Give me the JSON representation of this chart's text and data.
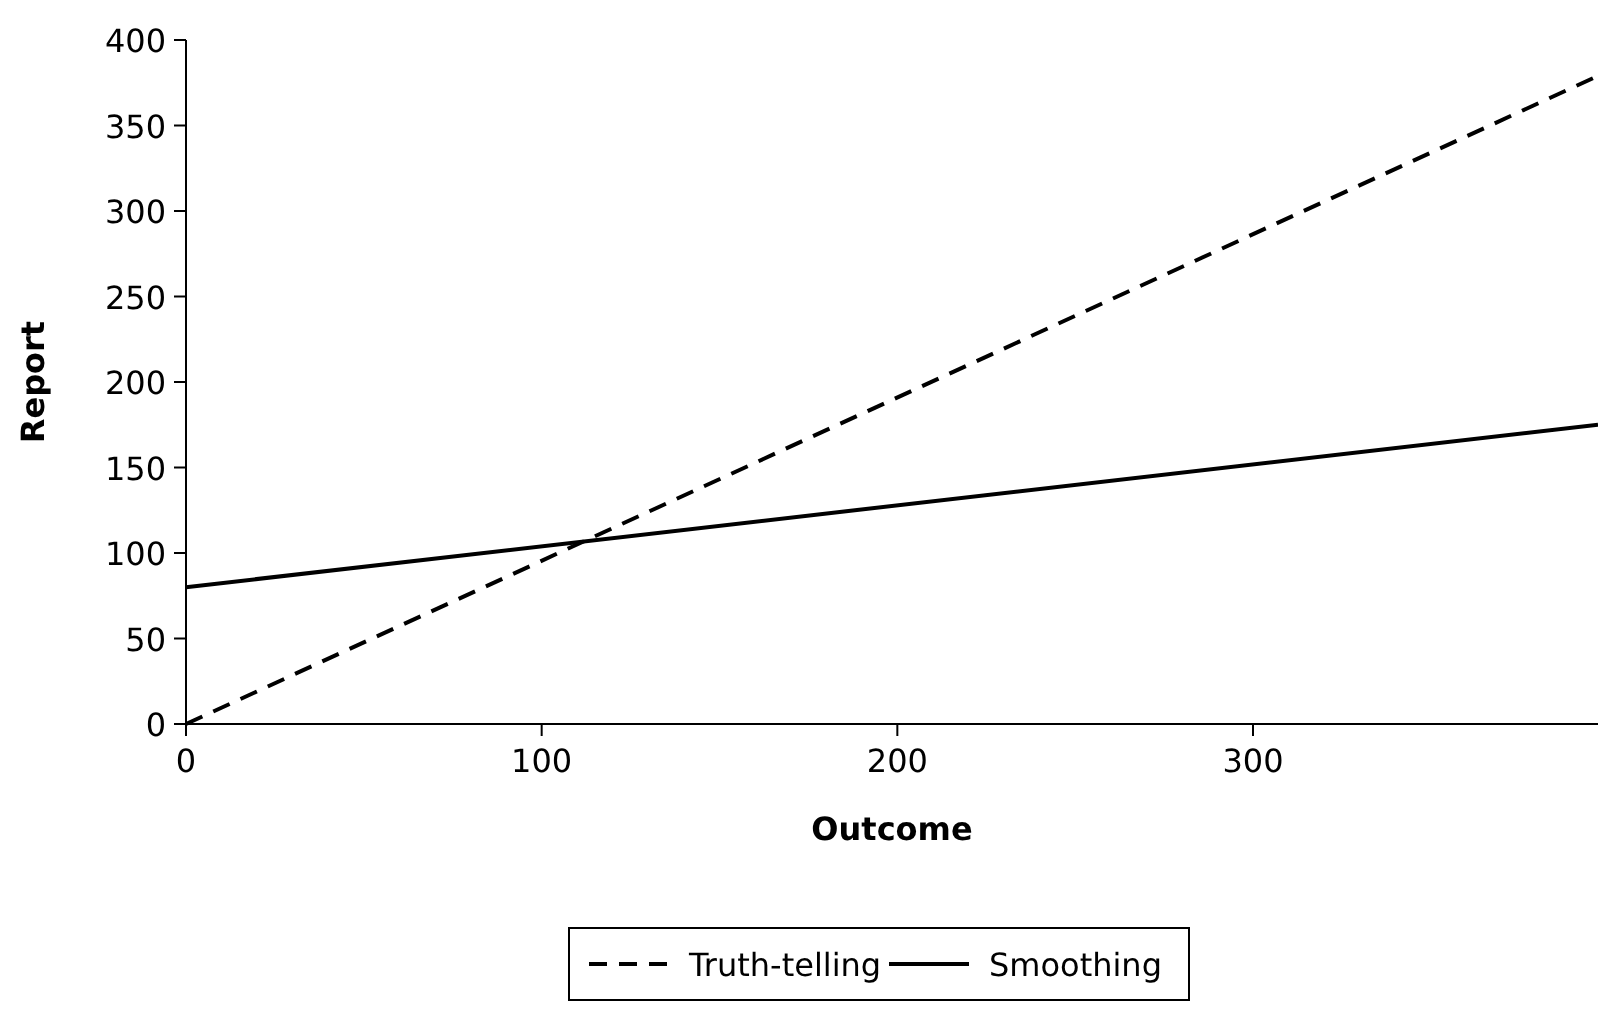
{
  "chart_data": {
    "type": "line",
    "xlabel": "Outcome",
    "ylabel": "Report",
    "xlim": [
      0,
      397
    ],
    "xticks": [
      0,
      100,
      200,
      300
    ],
    "ylim": [
      0,
      400
    ],
    "yticks": [
      0,
      50,
      100,
      150,
      200,
      250,
      300,
      350,
      400
    ],
    "grid": false,
    "legend": "bottom",
    "x": [
      0,
      397
    ],
    "series": [
      {
        "name": "Truth-telling",
        "color": "#000000",
        "line_style": "dashed",
        "values": [
          0,
          379
        ]
      },
      {
        "name": "Smoothing",
        "color": "#000000",
        "line_style": "solid",
        "values": [
          80,
          175
        ]
      }
    ]
  }
}
